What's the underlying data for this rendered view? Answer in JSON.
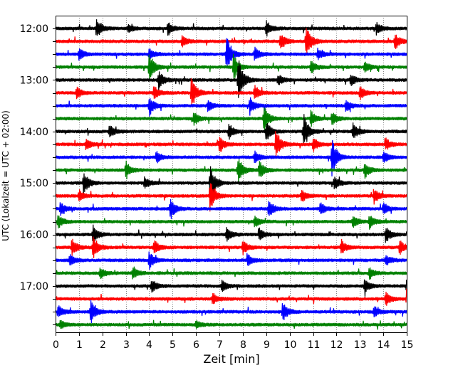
{
  "chart_data": {
    "type": "line",
    "chart_kind": "helicorder",
    "xlabel": "Zeit  [min]",
    "ylabel": "UTC (Lokalzeit = UTC + 02:00)",
    "xlim": [
      0,
      15
    ],
    "x_ticks": [
      0,
      1,
      2,
      3,
      4,
      5,
      6,
      7,
      8,
      9,
      10,
      11,
      12,
      13,
      14,
      15
    ],
    "x_tick_labels": [
      "0",
      "1",
      "2",
      "3",
      "4",
      "5",
      "6",
      "7",
      "8",
      "9",
      "10",
      "11",
      "12",
      "13",
      "14",
      "15"
    ],
    "y_ticks": [
      {
        "label": "12:00",
        "trace": 0
      },
      {
        "label": "13:00",
        "trace": 4
      },
      {
        "label": "14:00",
        "trace": 8
      },
      {
        "label": "15:00",
        "trace": 12
      },
      {
        "label": "16:00",
        "trace": 16
      },
      {
        "label": "17:00",
        "trace": 20
      }
    ],
    "grid": "vertical dotted at each minute",
    "series_colors": [
      "#000000",
      "#ff0000",
      "#0000ff",
      "#008000"
    ],
    "traces": [
      {
        "start": "12:00",
        "color": "#000000",
        "events": [
          {
            "t": 1.75,
            "amp": 0.55
          },
          {
            "t": 3.1,
            "amp": 0.2
          },
          {
            "t": 4.8,
            "amp": 0.35
          },
          {
            "t": 9.0,
            "amp": 0.4
          },
          {
            "t": 13.7,
            "amp": 0.3
          }
        ]
      },
      {
        "start": "12:15",
        "color": "#ff0000",
        "events": [
          {
            "t": 5.4,
            "amp": 0.3
          },
          {
            "t": 9.6,
            "amp": 0.45
          },
          {
            "t": 10.7,
            "amp": 0.9
          },
          {
            "t": 14.5,
            "amp": 0.4
          }
        ]
      },
      {
        "start": "12:30",
        "color": "#0000ff",
        "events": [
          {
            "t": 1.0,
            "amp": 0.3
          },
          {
            "t": 4.0,
            "amp": 0.3
          },
          {
            "t": 7.3,
            "amp": 1.0
          },
          {
            "t": 8.5,
            "amp": 0.35
          },
          {
            "t": 11.2,
            "amp": 0.3
          }
        ]
      },
      {
        "start": "12:45",
        "color": "#008000",
        "events": [
          {
            "t": 4.0,
            "amp": 0.8
          },
          {
            "t": 7.6,
            "amp": 0.7
          },
          {
            "t": 10.9,
            "amp": 0.35
          },
          {
            "t": 13.2,
            "amp": 0.3
          }
        ]
      },
      {
        "start": "13:00",
        "color": "#000000",
        "events": [
          {
            "t": 4.4,
            "amp": 0.5
          },
          {
            "t": 7.8,
            "amp": 1.3
          },
          {
            "t": 9.5,
            "amp": 0.3
          },
          {
            "t": 12.6,
            "amp": 0.35
          }
        ]
      },
      {
        "start": "13:15",
        "color": "#ff0000",
        "events": [
          {
            "t": 0.9,
            "amp": 0.3
          },
          {
            "t": 4.2,
            "amp": 0.35
          },
          {
            "t": 5.8,
            "amp": 0.9
          },
          {
            "t": 8.5,
            "amp": 0.4
          },
          {
            "t": 13.0,
            "amp": 0.35
          }
        ]
      },
      {
        "start": "13:30",
        "color": "#0000ff",
        "events": [
          {
            "t": 4.0,
            "amp": 0.55
          },
          {
            "t": 6.5,
            "amp": 0.3
          },
          {
            "t": 8.3,
            "amp": 0.45
          },
          {
            "t": 12.4,
            "amp": 0.3
          }
        ]
      },
      {
        "start": "13:45",
        "color": "#008000",
        "events": [
          {
            "t": 5.9,
            "amp": 0.35
          },
          {
            "t": 8.9,
            "amp": 0.7
          },
          {
            "t": 10.9,
            "amp": 0.4
          },
          {
            "t": 11.8,
            "amp": 0.35
          }
        ]
      },
      {
        "start": "14:00",
        "color": "#000000",
        "events": [
          {
            "t": 2.3,
            "amp": 0.35
          },
          {
            "t": 7.4,
            "amp": 0.4
          },
          {
            "t": 9.0,
            "amp": 0.5
          },
          {
            "t": 10.6,
            "amp": 0.9
          },
          {
            "t": 12.7,
            "amp": 0.45
          }
        ]
      },
      {
        "start": "14:15",
        "color": "#ff0000",
        "events": [
          {
            "t": 1.3,
            "amp": 0.3
          },
          {
            "t": 7.0,
            "amp": 0.45
          },
          {
            "t": 9.4,
            "amp": 0.8
          },
          {
            "t": 11.0,
            "amp": 0.35
          },
          {
            "t": 14.1,
            "amp": 0.3
          }
        ]
      },
      {
        "start": "14:30",
        "color": "#0000ff",
        "events": [
          {
            "t": 4.3,
            "amp": 0.3
          },
          {
            "t": 8.5,
            "amp": 0.3
          },
          {
            "t": 11.8,
            "amp": 1.0
          },
          {
            "t": 14.0,
            "amp": 0.3
          }
        ]
      },
      {
        "start": "14:45",
        "color": "#008000",
        "events": [
          {
            "t": 3.0,
            "amp": 0.45
          },
          {
            "t": 7.8,
            "amp": 0.75
          },
          {
            "t": 8.7,
            "amp": 0.5
          },
          {
            "t": 13.2,
            "amp": 0.4
          }
        ]
      },
      {
        "start": "15:00",
        "color": "#000000",
        "events": [
          {
            "t": 1.2,
            "amp": 0.6
          },
          {
            "t": 3.8,
            "amp": 0.3
          },
          {
            "t": 6.6,
            "amp": 1.0
          },
          {
            "t": 11.9,
            "amp": 0.35
          }
        ]
      },
      {
        "start": "15:15",
        "color": "#ff0000",
        "events": [
          {
            "t": 1.0,
            "amp": 0.3
          },
          {
            "t": 6.6,
            "amp": 0.8
          },
          {
            "t": 10.5,
            "amp": 0.35
          },
          {
            "t": 13.6,
            "amp": 0.4
          }
        ]
      },
      {
        "start": "15:30",
        "color": "#0000ff",
        "events": [
          {
            "t": 0.2,
            "amp": 0.35
          },
          {
            "t": 4.9,
            "amp": 0.55
          },
          {
            "t": 9.1,
            "amp": 0.5
          },
          {
            "t": 11.3,
            "amp": 0.35
          },
          {
            "t": 14.0,
            "amp": 0.3
          }
        ]
      },
      {
        "start": "15:45",
        "color": "#008000",
        "events": [
          {
            "t": 0.1,
            "amp": 0.35
          },
          {
            "t": 8.5,
            "amp": 0.3
          },
          {
            "t": 12.7,
            "amp": 0.35
          },
          {
            "t": 13.4,
            "amp": 0.4
          }
        ]
      },
      {
        "start": "16:00",
        "color": "#000000",
        "events": [
          {
            "t": 1.6,
            "amp": 0.45
          },
          {
            "t": 7.3,
            "amp": 0.35
          },
          {
            "t": 8.7,
            "amp": 0.3
          },
          {
            "t": 14.1,
            "amp": 0.45
          }
        ]
      },
      {
        "start": "16:15",
        "color": "#ff0000",
        "events": [
          {
            "t": 0.7,
            "amp": 0.45
          },
          {
            "t": 1.6,
            "amp": 0.6
          },
          {
            "t": 4.2,
            "amp": 0.4
          },
          {
            "t": 8.0,
            "amp": 0.35
          },
          {
            "t": 12.2,
            "amp": 0.4
          },
          {
            "t": 14.7,
            "amp": 0.4
          }
        ]
      },
      {
        "start": "16:30",
        "color": "#0000ff",
        "events": [
          {
            "t": 0.6,
            "amp": 0.3
          },
          {
            "t": 4.0,
            "amp": 0.45
          },
          {
            "t": 8.2,
            "amp": 0.3
          },
          {
            "t": 14.1,
            "amp": 0.3
          }
        ]
      },
      {
        "start": "16:45",
        "color": "#008000",
        "events": [
          {
            "t": 1.9,
            "amp": 0.3
          },
          {
            "t": 3.3,
            "amp": 0.35
          },
          {
            "t": 13.4,
            "amp": 0.3
          }
        ]
      },
      {
        "start": "17:00",
        "color": "#000000",
        "events": [
          {
            "t": 4.1,
            "amp": 0.35
          },
          {
            "t": 7.1,
            "amp": 0.3
          },
          {
            "t": 13.2,
            "amp": 0.35
          },
          {
            "t": 15.0,
            "amp": 0.5
          }
        ]
      },
      {
        "start": "17:15",
        "color": "#ff0000",
        "events": [
          {
            "t": 6.7,
            "amp": 0.3
          },
          {
            "t": 14.1,
            "amp": 0.35
          },
          {
            "t": 15.0,
            "amp": 0.5
          }
        ]
      },
      {
        "start": "17:30",
        "color": "#0000ff",
        "events": [
          {
            "t": 0.1,
            "amp": 0.35
          },
          {
            "t": 1.5,
            "amp": 0.6
          },
          {
            "t": 9.7,
            "amp": 0.5
          },
          {
            "t": 13.6,
            "amp": 0.3
          }
        ]
      },
      {
        "start": "17:45",
        "color": "#008000",
        "events": [
          {
            "t": 0.2,
            "amp": 0.2
          },
          {
            "t": 6.0,
            "amp": 0.2
          }
        ]
      }
    ]
  }
}
